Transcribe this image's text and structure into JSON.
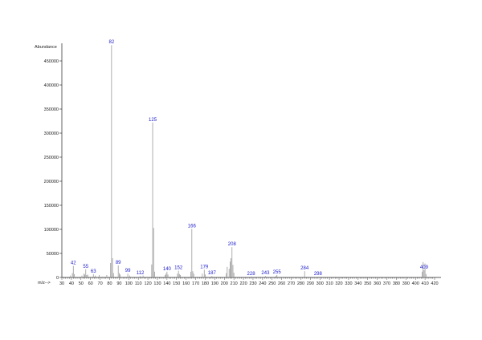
{
  "chart_data": {
    "type": "bar",
    "ylabel": "Abundance",
    "xlabel": "m/z-->",
    "xlim": [
      30,
      420
    ],
    "ylim": [
      0,
      480000
    ],
    "x_ticks": [
      30,
      40,
      50,
      60,
      70,
      80,
      90,
      100,
      110,
      120,
      130,
      140,
      150,
      160,
      170,
      180,
      190,
      200,
      210,
      220,
      230,
      240,
      250,
      260,
      270,
      280,
      290,
      300,
      310,
      320,
      330,
      340,
      350,
      360,
      370,
      380,
      390,
      400,
      410,
      420
    ],
    "y_ticks": [
      0,
      50000,
      100000,
      150000,
      200000,
      250000,
      300000,
      350000,
      400000,
      450000
    ],
    "colors": {
      "bars": "#9a9a9a",
      "labels": "#1a1acc",
      "axis": "#222222"
    },
    "peaks": [
      {
        "x": 39,
        "y": 4000
      },
      {
        "x": 41,
        "y": 9000
      },
      {
        "x": 42,
        "y": 24000,
        "label": "42"
      },
      {
        "x": 43,
        "y": 7000
      },
      {
        "x": 51,
        "y": 4000
      },
      {
        "x": 53,
        "y": 8000
      },
      {
        "x": 54,
        "y": 6000
      },
      {
        "x": 55,
        "y": 17000,
        "label": "55"
      },
      {
        "x": 56,
        "y": 5000
      },
      {
        "x": 57,
        "y": 6000
      },
      {
        "x": 63,
        "y": 7000,
        "label": "63"
      },
      {
        "x": 65,
        "y": 4000
      },
      {
        "x": 69,
        "y": 5000
      },
      {
        "x": 77,
        "y": 5000
      },
      {
        "x": 81,
        "y": 30000
      },
      {
        "x": 82,
        "y": 483000,
        "label": "82"
      },
      {
        "x": 83,
        "y": 40000
      },
      {
        "x": 84,
        "y": 9000
      },
      {
        "x": 89,
        "y": 25000,
        "label": "89"
      },
      {
        "x": 90,
        "y": 9000
      },
      {
        "x": 91,
        "y": 6000
      },
      {
        "x": 99,
        "y": 8000,
        "label": "99"
      },
      {
        "x": 101,
        "y": 4000
      },
      {
        "x": 112,
        "y": 3000,
        "label": "112"
      },
      {
        "x": 115,
        "y": 4000
      },
      {
        "x": 124,
        "y": 27000
      },
      {
        "x": 125,
        "y": 322000,
        "label": "125"
      },
      {
        "x": 126,
        "y": 103000
      },
      {
        "x": 127,
        "y": 12000
      },
      {
        "x": 138,
        "y": 5000
      },
      {
        "x": 139,
        "y": 8000
      },
      {
        "x": 140,
        "y": 12000,
        "label": "140"
      },
      {
        "x": 141,
        "y": 6000
      },
      {
        "x": 151,
        "y": 8000
      },
      {
        "x": 152,
        "y": 14000,
        "label": "152"
      },
      {
        "x": 153,
        "y": 7000
      },
      {
        "x": 154,
        "y": 5000
      },
      {
        "x": 165,
        "y": 12000
      },
      {
        "x": 166,
        "y": 101000,
        "label": "166"
      },
      {
        "x": 167,
        "y": 13000
      },
      {
        "x": 168,
        "y": 8000
      },
      {
        "x": 177,
        "y": 8000
      },
      {
        "x": 179,
        "y": 16000,
        "label": "179"
      },
      {
        "x": 180,
        "y": 6000
      },
      {
        "x": 187,
        "y": 3000,
        "label": "187"
      },
      {
        "x": 202,
        "y": 9000
      },
      {
        "x": 203,
        "y": 22000
      },
      {
        "x": 205,
        "y": 18000
      },
      {
        "x": 206,
        "y": 33000
      },
      {
        "x": 207,
        "y": 40000
      },
      {
        "x": 208,
        "y": 63000,
        "label": "208"
      },
      {
        "x": 209,
        "y": 26000
      },
      {
        "x": 210,
        "y": 10000
      },
      {
        "x": 228,
        "y": 2000,
        "label": "228"
      },
      {
        "x": 243,
        "y": 3000,
        "label": "243"
      },
      {
        "x": 254,
        "y": 3000
      },
      {
        "x": 255,
        "y": 5000,
        "label": "255"
      },
      {
        "x": 284,
        "y": 13000,
        "label": "284"
      },
      {
        "x": 298,
        "y": 1500,
        "label": "298"
      },
      {
        "x": 407,
        "y": 12000
      },
      {
        "x": 408,
        "y": 32000
      },
      {
        "x": 409,
        "y": 15000,
        "label": "409"
      },
      {
        "x": 410,
        "y": 29000
      },
      {
        "x": 411,
        "y": 7000
      }
    ]
  }
}
